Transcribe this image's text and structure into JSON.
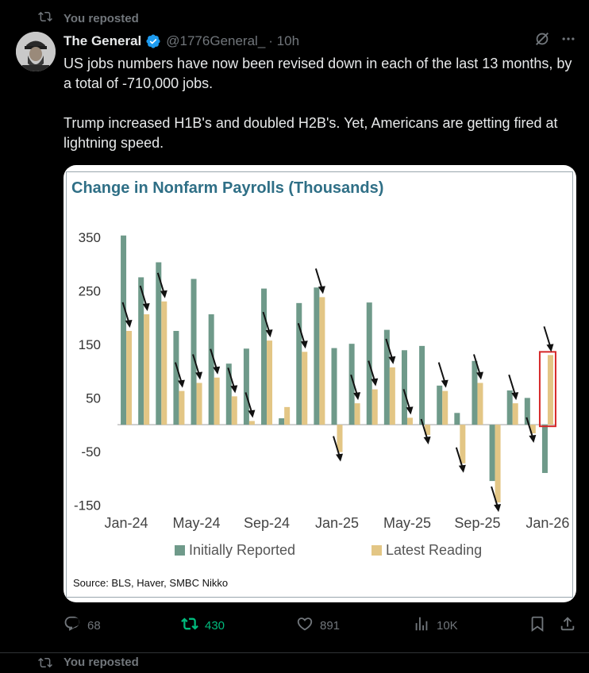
{
  "repost": {
    "label": "You reposted"
  },
  "author": {
    "name": "The General",
    "handle": "@1776General_",
    "time": "· 10h"
  },
  "tweet": {
    "text": "US jobs numbers have now been revised down in each of the last 13 months, by a total of -710,000 jobs.\n\nTrump increased H1B's and doubled H2B's. Yet, Americans are getting fired at lightning speed."
  },
  "chart_data": {
    "type": "bar",
    "title": "Change in Nonfarm Payrolls (Thousands)",
    "source": "Source: BLS, Haver, SMBC Nikko",
    "ylim": [
      -170,
      360
    ],
    "yticks": [
      350,
      250,
      150,
      50,
      -50,
      -150
    ],
    "ytick_labels": [
      "350",
      "250",
      "150",
      "50",
      "-50",
      "-150"
    ],
    "x_tick_labels": [
      "Jan-24",
      "May-24",
      "Sep-24",
      "Jan-25",
      "May-25",
      "Sep-25",
      "Jan-26"
    ],
    "x_tick_indices": [
      0,
      4,
      8,
      12,
      16,
      20,
      24
    ],
    "categories": [
      "Jan-24",
      "Feb-24",
      "Mar-24",
      "Apr-24",
      "May-24",
      "Jun-24",
      "Jul-24",
      "Aug-24",
      "Sep-24",
      "Oct-24",
      "Nov-24",
      "Dec-24",
      "Jan-25",
      "Feb-25",
      "Mar-25",
      "Apr-25",
      "May-25",
      "Jun-25",
      "Jul-25",
      "Aug-25",
      "Sep-25",
      "Oct-25",
      "Nov-25",
      "Dec-25",
      "Jan-26"
    ],
    "series": [
      {
        "name": "Initially Reported",
        "color": "#6f9a8a",
        "values": [
          353,
          275,
          303,
          175,
          272,
          206,
          114,
          142,
          254,
          12,
          227,
          256,
          143,
          151,
          228,
          177,
          139,
          147,
          73,
          22,
          119,
          -105,
          64,
          50,
          -90
        ]
      },
      {
        "name": "Latest Reading",
        "color": "#e3c685",
        "values": [
          175,
          206,
          230,
          63,
          78,
          88,
          53,
          7,
          157,
          33,
          136,
          238,
          -51,
          40,
          66,
          107,
          13,
          -19,
          63,
          -72,
          78,
          -145,
          40,
          -16,
          130
        ]
      }
    ],
    "highlight_index": 24,
    "highlight_color": "#d62728",
    "arrow_indices": [
      0,
      1,
      2,
      3,
      4,
      5,
      6,
      7,
      8,
      10,
      11,
      12,
      13,
      14,
      15,
      16,
      17,
      18,
      19,
      20,
      21,
      22,
      23,
      24
    ],
    "grid": false,
    "legend_position": "bottom-center"
  },
  "actions": {
    "reply": "68",
    "repost": "430",
    "like": "891",
    "views": "10K"
  },
  "colors": {
    "repost_green": "#00ba7c",
    "verified_blue": "#1d9bf0"
  },
  "next": {
    "label": "You reposted"
  }
}
